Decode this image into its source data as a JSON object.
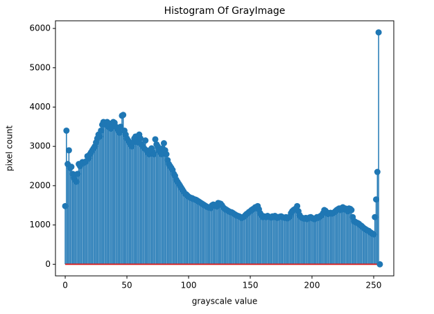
{
  "chart_data": {
    "type": "stem",
    "title": "Histogram Of GrayImage",
    "xlabel": "grayscale value",
    "ylabel": "pixel count",
    "color": "#1f77b4",
    "baseline_color": "#d62728",
    "xlim": [
      -7.9,
      266.3
    ],
    "xticks": [
      0,
      50,
      100,
      150,
      200,
      250
    ],
    "ylim": [
      -295,
      6195
    ],
    "yticks": [
      0,
      1000,
      2000,
      3000,
      4000,
      5000,
      6000
    ],
    "x": [
      0,
      1,
      2,
      3,
      4,
      5,
      6,
      7,
      8,
      9,
      10,
      11,
      12,
      13,
      14,
      15,
      16,
      17,
      18,
      19,
      20,
      21,
      22,
      23,
      24,
      25,
      26,
      27,
      28,
      29,
      30,
      31,
      32,
      33,
      34,
      35,
      36,
      37,
      38,
      39,
      40,
      41,
      42,
      43,
      44,
      45,
      46,
      47,
      48,
      49,
      50,
      51,
      52,
      53,
      54,
      55,
      56,
      57,
      58,
      59,
      60,
      61,
      62,
      63,
      64,
      65,
      66,
      67,
      68,
      69,
      70,
      71,
      72,
      73,
      74,
      75,
      76,
      77,
      78,
      79,
      80,
      81,
      82,
      83,
      84,
      85,
      86,
      87,
      88,
      89,
      90,
      91,
      92,
      93,
      94,
      95,
      96,
      97,
      98,
      99,
      100,
      101,
      102,
      103,
      104,
      105,
      106,
      107,
      108,
      109,
      110,
      111,
      112,
      113,
      114,
      115,
      116,
      117,
      118,
      119,
      120,
      121,
      122,
      123,
      124,
      125,
      126,
      127,
      128,
      129,
      130,
      131,
      132,
      133,
      134,
      135,
      136,
      137,
      138,
      139,
      140,
      141,
      142,
      143,
      144,
      145,
      146,
      147,
      148,
      149,
      150,
      151,
      152,
      153,
      154,
      155,
      156,
      157,
      158,
      159,
      160,
      161,
      162,
      163,
      164,
      165,
      166,
      167,
      168,
      169,
      170,
      171,
      172,
      173,
      174,
      175,
      176,
      177,
      178,
      179,
      180,
      181,
      182,
      183,
      184,
      185,
      186,
      187,
      188,
      189,
      190,
      191,
      192,
      193,
      194,
      195,
      196,
      197,
      198,
      199,
      200,
      201,
      202,
      203,
      204,
      205,
      206,
      207,
      208,
      209,
      210,
      211,
      212,
      213,
      214,
      215,
      216,
      217,
      218,
      219,
      220,
      221,
      222,
      223,
      224,
      225,
      226,
      227,
      228,
      229,
      230,
      231,
      232,
      233,
      234,
      235,
      236,
      237,
      238,
      239,
      240,
      241,
      242,
      243,
      244,
      245,
      246,
      247,
      248,
      249,
      250,
      251,
      252,
      253,
      254,
      255
    ],
    "values": [
      1480,
      3400,
      2550,
      2900,
      2450,
      2480,
      2300,
      2200,
      2150,
      2100,
      2300,
      2550,
      2500,
      2550,
      2600,
      2580,
      2600,
      2620,
      2750,
      2700,
      2800,
      2850,
      2900,
      2950,
      3000,
      3100,
      3200,
      3300,
      3250,
      3400,
      3550,
      3620,
      3600,
      3550,
      3620,
      3500,
      3580,
      3450,
      3550,
      3620,
      3600,
      3500,
      3450,
      3400,
      3350,
      3500,
      3780,
      3800,
      3400,
      3300,
      3200,
      3150,
      3100,
      3050,
      3000,
      3100,
      3200,
      3250,
      3150,
      3100,
      3300,
      3200,
      3050,
      3000,
      2950,
      3150,
      2900,
      2850,
      2800,
      2900,
      2950,
      2850,
      2800,
      3180,
      3050,
      3000,
      2900,
      2850,
      2800,
      2950,
      3080,
      2900,
      2800,
      2650,
      2550,
      2500,
      2450,
      2400,
      2300,
      2250,
      2150,
      2100,
      2050,
      2000,
      1950,
      1900,
      1850,
      1800,
      1780,
      1750,
      1720,
      1700,
      1690,
      1680,
      1660,
      1650,
      1640,
      1620,
      1600,
      1580,
      1560,
      1540,
      1520,
      1500,
      1480,
      1460,
      1450,
      1440,
      1430,
      1500,
      1520,
      1510,
      1480,
      1470,
      1560,
      1550,
      1540,
      1500,
      1450,
      1420,
      1400,
      1380,
      1360,
      1340,
      1330,
      1320,
      1300,
      1280,
      1260,
      1240,
      1230,
      1220,
      1200,
      1180,
      1200,
      1210,
      1250,
      1280,
      1300,
      1330,
      1350,
      1380,
      1400,
      1420,
      1450,
      1430,
      1480,
      1400,
      1300,
      1250,
      1200,
      1220,
      1210,
      1200,
      1230,
      1210,
      1200,
      1190,
      1220,
      1200,
      1230,
      1210,
      1180,
      1200,
      1210,
      1220,
      1200,
      1190,
      1180,
      1200,
      1170,
      1190,
      1210,
      1300,
      1350,
      1380,
      1400,
      1420,
      1480,
      1350,
      1250,
      1200,
      1180,
      1170,
      1160,
      1180,
      1150,
      1170,
      1190,
      1200,
      1180,
      1160,
      1150,
      1170,
      1200,
      1180,
      1210,
      1230,
      1250,
      1300,
      1380,
      1360,
      1320,
      1280,
      1300,
      1310,
      1290,
      1300,
      1320,
      1350,
      1380,
      1400,
      1420,
      1380,
      1430,
      1450,
      1400,
      1420,
      1380,
      1350,
      1420,
      1410,
      1380,
      1200,
      1100,
      1080,
      1060,
      1050,
      1030,
      1000,
      980,
      950,
      920,
      900,
      880,
      860,
      850,
      820,
      800,
      780,
      760,
      1200,
      1650,
      2350,
      5900,
      0
    ]
  }
}
